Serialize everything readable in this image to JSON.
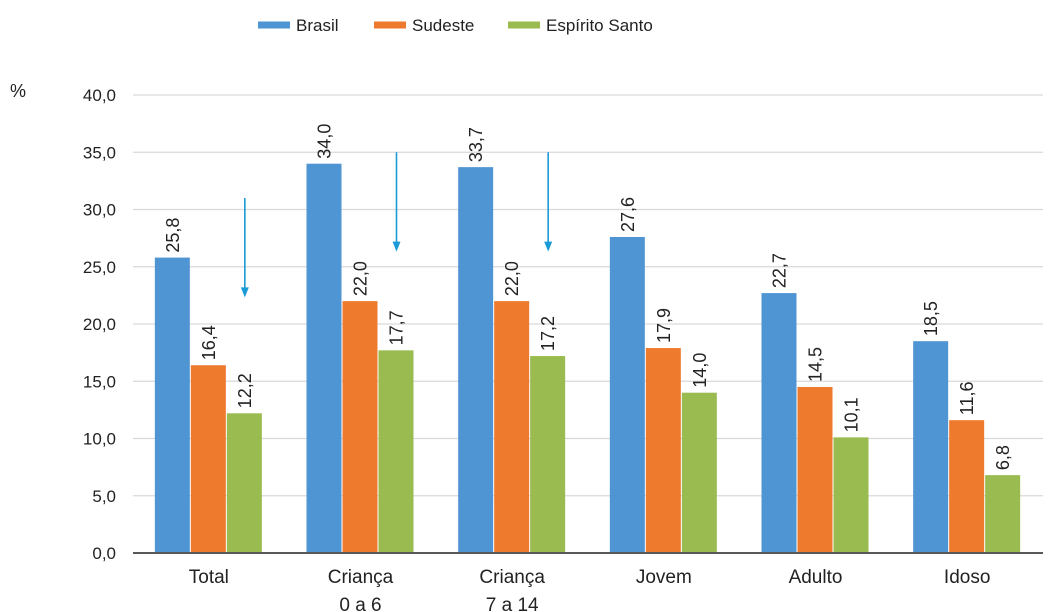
{
  "chart_data": {
    "type": "bar",
    "unit_label": "%",
    "categories": [
      [
        "Total"
      ],
      [
        "Criança",
        "0 a 6"
      ],
      [
        "Criança",
        "7 a 14"
      ],
      [
        "Jovem"
      ],
      [
        "Adulto"
      ],
      [
        "Idoso"
      ]
    ],
    "series": [
      {
        "name": "Brasil",
        "color": "#4f95d3",
        "values": [
          25.8,
          34.0,
          33.7,
          27.6,
          22.7,
          18.5
        ]
      },
      {
        "name": "Sudeste",
        "color": "#ee7a2e",
        "values": [
          16.4,
          22.0,
          22.0,
          17.9,
          14.5,
          11.6
        ]
      },
      {
        "name": "Espírito Santo",
        "color": "#99bb4f",
        "values": [
          12.2,
          17.7,
          17.2,
          14.0,
          10.1,
          6.8
        ]
      }
    ],
    "value_labels": [
      [
        "25,8",
        "34,0",
        "33,7",
        "27,6",
        "22,7",
        "18,5"
      ],
      [
        "16,4",
        "22,0",
        "22,0",
        "17,9",
        "14,5",
        "11,6"
      ],
      [
        "12,2",
        "17,7",
        "17,2",
        "14,0",
        "10,1",
        "6,8"
      ]
    ],
    "yticks": [
      "0,0",
      "5,0",
      "10,0",
      "15,0",
      "20,0",
      "25,0",
      "30,0",
      "35,0",
      "40,0"
    ],
    "ylim": [
      0,
      40
    ],
    "grid": true,
    "legend_position": "top-center",
    "annotations": {
      "arrow_color": "#1a9ad6",
      "arrows": [
        {
          "category": "Total",
          "from": 31.0,
          "to": 22.5
        },
        {
          "category": "Criança 0 a 6",
          "from": 35.0,
          "to": 26.5
        },
        {
          "category": "Criança 7 a 14",
          "from": 35.0,
          "to": 26.5
        }
      ]
    }
  }
}
